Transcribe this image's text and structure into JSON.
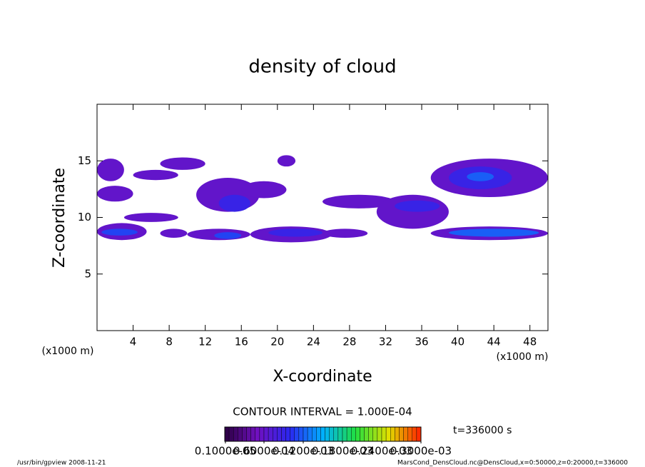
{
  "chart_data": {
    "type": "contour",
    "title": "density of cloud",
    "xlabel": "X-coordinate",
    "ylabel": "Z-coordinate",
    "xunit_left": "(x1000 m)",
    "xunit_right": "(x1000 m)",
    "xlim": [
      0,
      50
    ],
    "ylim": [
      0,
      20
    ],
    "xticks": [
      4,
      8,
      12,
      16,
      20,
      24,
      28,
      32,
      36,
      40,
      44,
      48
    ],
    "yticks": [
      5,
      10,
      15
    ],
    "patches": [
      {
        "x": [
          0,
          5.5
        ],
        "z": [
          8.0,
          9.5
        ],
        "value": 6e-05
      },
      {
        "x": [
          0.5,
          4.5
        ],
        "z": [
          8.4,
          9.0
        ],
        "value": 0.00011
      },
      {
        "x": [
          0,
          3
        ],
        "z": [
          13.2,
          15.2
        ],
        "value": 6e-05
      },
      {
        "x": [
          0,
          4
        ],
        "z": [
          11.4,
          12.8
        ],
        "value": 6e-05
      },
      {
        "x": [
          4,
          9
        ],
        "z": [
          13.3,
          14.2
        ],
        "value": 6e-05
      },
      {
        "x": [
          7,
          12
        ],
        "z": [
          14.2,
          15.3
        ],
        "value": 6e-05
      },
      {
        "x": [
          3,
          9
        ],
        "z": [
          9.6,
          10.4
        ],
        "value": 6e-05
      },
      {
        "x": [
          7,
          10
        ],
        "z": [
          8.2,
          9.0
        ],
        "value": 6e-05
      },
      {
        "x": [
          11,
          18
        ],
        "z": [
          10.5,
          13.5
        ],
        "value": 6e-05
      },
      {
        "x": [
          13.5,
          17
        ],
        "z": [
          10.5,
          12
        ],
        "value": 9e-05
      },
      {
        "x": [
          16,
          21
        ],
        "z": [
          11.7,
          13.2
        ],
        "value": 6e-05
      },
      {
        "x": [
          10,
          17
        ],
        "z": [
          8.0,
          9.0
        ],
        "value": 6e-05
      },
      {
        "x": [
          13,
          16
        ],
        "z": [
          8.1,
          8.7
        ],
        "value": 0.00011
      },
      {
        "x": [
          17,
          26
        ],
        "z": [
          7.8,
          9.2
        ],
        "value": 6e-05
      },
      {
        "x": [
          19,
          25
        ],
        "z": [
          8.3,
          9.0
        ],
        "value": 9e-05
      },
      {
        "x": [
          20,
          22
        ],
        "z": [
          14.5,
          15.5
        ],
        "value": 6e-05
      },
      {
        "x": [
          25,
          30
        ],
        "z": [
          8.2,
          9.0
        ],
        "value": 6e-05
      },
      {
        "x": [
          25,
          33
        ],
        "z": [
          10.8,
          12.0
        ],
        "value": 6e-05
      },
      {
        "x": [
          31,
          39
        ],
        "z": [
          9.0,
          12.0
        ],
        "value": 6e-05
      },
      {
        "x": [
          33,
          38
        ],
        "z": [
          10.5,
          11.5
        ],
        "value": 9e-05
      },
      {
        "x": [
          37,
          50
        ],
        "z": [
          8.0,
          9.2
        ],
        "value": 6e-05
      },
      {
        "x": [
          39,
          49
        ],
        "z": [
          8.3,
          9.0
        ],
        "value": 0.00012
      },
      {
        "x": [
          37,
          50
        ],
        "z": [
          11.8,
          15.2
        ],
        "value": 6e-05
      },
      {
        "x": [
          39,
          46
        ],
        "z": [
          12.5,
          14.5
        ],
        "value": 9e-05
      },
      {
        "x": [
          41,
          44
        ],
        "z": [
          13.2,
          14.0
        ],
        "value": 0.00012
      }
    ],
    "contour_interval": "CONTOUR INTERVAL = 1.000E-04",
    "time_label": "t=336000 s",
    "colorbar": {
      "lim": [
        0,
        0.0003
      ],
      "colors": [
        "#2a0040",
        "#7010c0",
        "#2a28f0",
        "#00b0ff",
        "#20e040",
        "#e0e000",
        "#ff2000"
      ],
      "ticks": [
        {
          "value": 1e-06,
          "label": "0.1000e-05"
        },
        {
          "value": 6e-05,
          "label": "0.6000e-04"
        },
        {
          "value": 0.00012,
          "label": "0.1200e-03"
        },
        {
          "value": 0.00018,
          "label": "0.1800e-03"
        },
        {
          "value": 0.00024,
          "label": "0.2400e-03"
        },
        {
          "value": 0.0003,
          "label": "0.3000e-03"
        }
      ]
    },
    "footer_left": "/usr/bin/gpview  2008-11-21",
    "footer_right": "MarsCond_DensCloud.nc@DensCloud,x=0:50000,z=0:20000,t=336000"
  }
}
